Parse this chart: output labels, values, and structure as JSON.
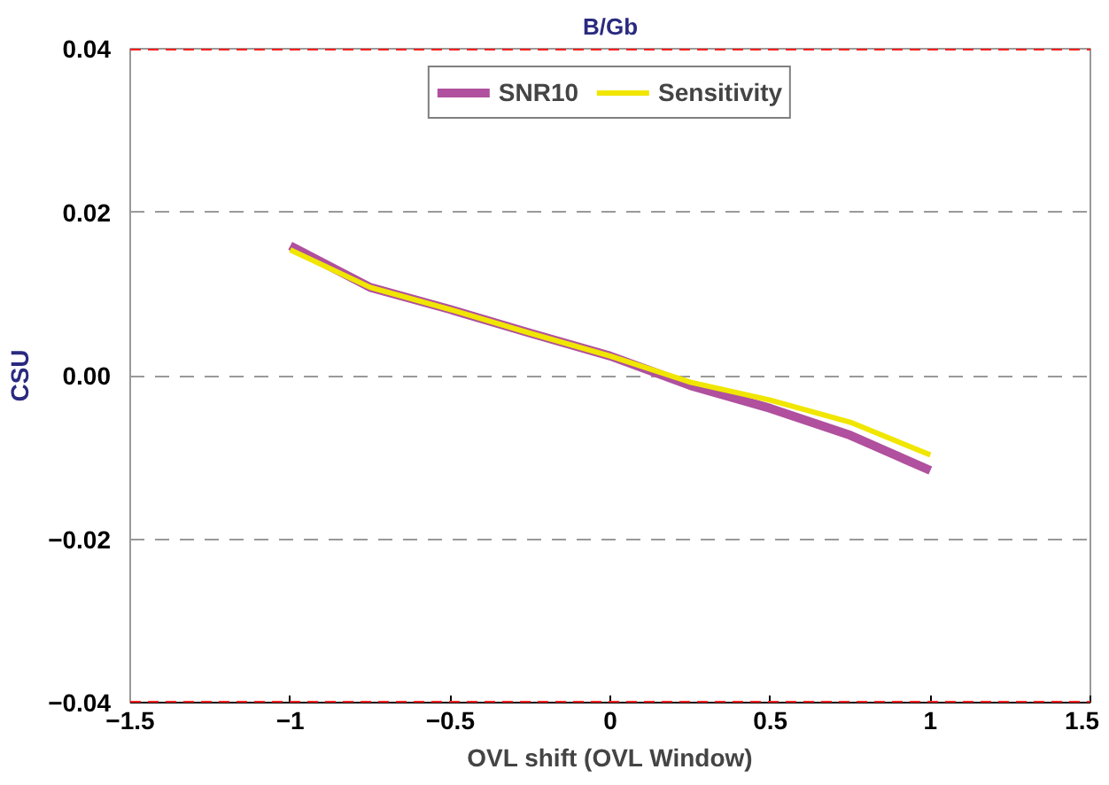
{
  "chart_data": {
    "type": "line",
    "title": "B/Gb",
    "xlabel": "OVL shift (OVL Window)",
    "ylabel": "CSU",
    "x": [
      -1,
      -0.75,
      -0.5,
      -0.25,
      0,
      0.25,
      0.5,
      0.75,
      1
    ],
    "series": [
      {
        "name": "SNR10",
        "color": "#b0509e",
        "values": [
          0.0159,
          0.0108,
          0.0081,
          0.0052,
          0.0024,
          -0.0012,
          -0.004,
          -0.0073,
          -0.0116
        ]
      },
      {
        "name": "Sensitivity",
        "color": "#f0e600",
        "values": [
          0.0154,
          0.0108,
          0.0081,
          0.0052,
          0.0024,
          -0.0008,
          -0.003,
          -0.0057,
          -0.0097
        ]
      }
    ],
    "xlim": [
      -1.5,
      1.5
    ],
    "ylim": [
      -0.04,
      0.04
    ],
    "xticks": [
      -1.5,
      -1,
      -0.5,
      0,
      0.5,
      1,
      1.5
    ],
    "yticks": [
      -0.04,
      -0.02,
      {
        "value": 0,
        "label": "0.00"
      },
      0.02,
      0.04
    ],
    "ref_lines": [
      {
        "axis": "y",
        "value": 0.04,
        "color": "#ff2020",
        "line_style": "dashed"
      },
      {
        "axis": "y",
        "value": -0.04,
        "color": "#ff2020",
        "line_style": "dashed"
      }
    ],
    "grid": "y",
    "legend": "top",
    "marker": "none",
    "line_style": "solid"
  }
}
